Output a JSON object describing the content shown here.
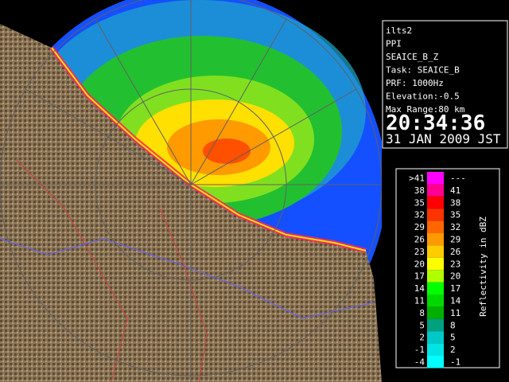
{
  "info": {
    "lines": [
      "ilts2",
      "PPI",
      "SEAICE_B_Z",
      "Task: SEAICE_B",
      "PRF: 1000Hz",
      "Elevation:-0.5",
      "Max Range:80 km"
    ],
    "time": "20:34:36",
    "date": "31 JAN 2009 JST"
  },
  "legend": {
    "title": "Reflectivity in dBZ",
    "rows": [
      {
        "low": ">41",
        "high": "---",
        "color": "#ff00ff"
      },
      {
        "low": "38",
        "high": "41",
        "color": "#ff0090"
      },
      {
        "low": "35",
        "high": "38",
        "color": "#ff0000"
      },
      {
        "low": "32",
        "high": "35",
        "color": "#ff3300"
      },
      {
        "low": "29",
        "high": "32",
        "color": "#ff6600"
      },
      {
        "low": "26",
        "high": "29",
        "color": "#ff9900"
      },
      {
        "low": "23",
        "high": "26",
        "color": "#ffcc00"
      },
      {
        "low": "20",
        "high": "23",
        "color": "#ffff00"
      },
      {
        "low": "17",
        "high": "20",
        "color": "#b0ff00"
      },
      {
        "low": "14",
        "high": "17",
        "color": "#00ff00"
      },
      {
        "low": "11",
        "high": "14",
        "color": "#00d800"
      },
      {
        "low": "8",
        "high": "11",
        "color": "#00b000"
      },
      {
        "low": "5",
        "high": "8",
        "color": "#00a080"
      },
      {
        "low": "2",
        "high": "5",
        "color": "#00c8c8"
      },
      {
        "low": "-1",
        "high": "2",
        "color": "#00e4e4"
      },
      {
        "low": "-4",
        "high": "-1",
        "color": "#00ffff"
      }
    ]
  }
}
